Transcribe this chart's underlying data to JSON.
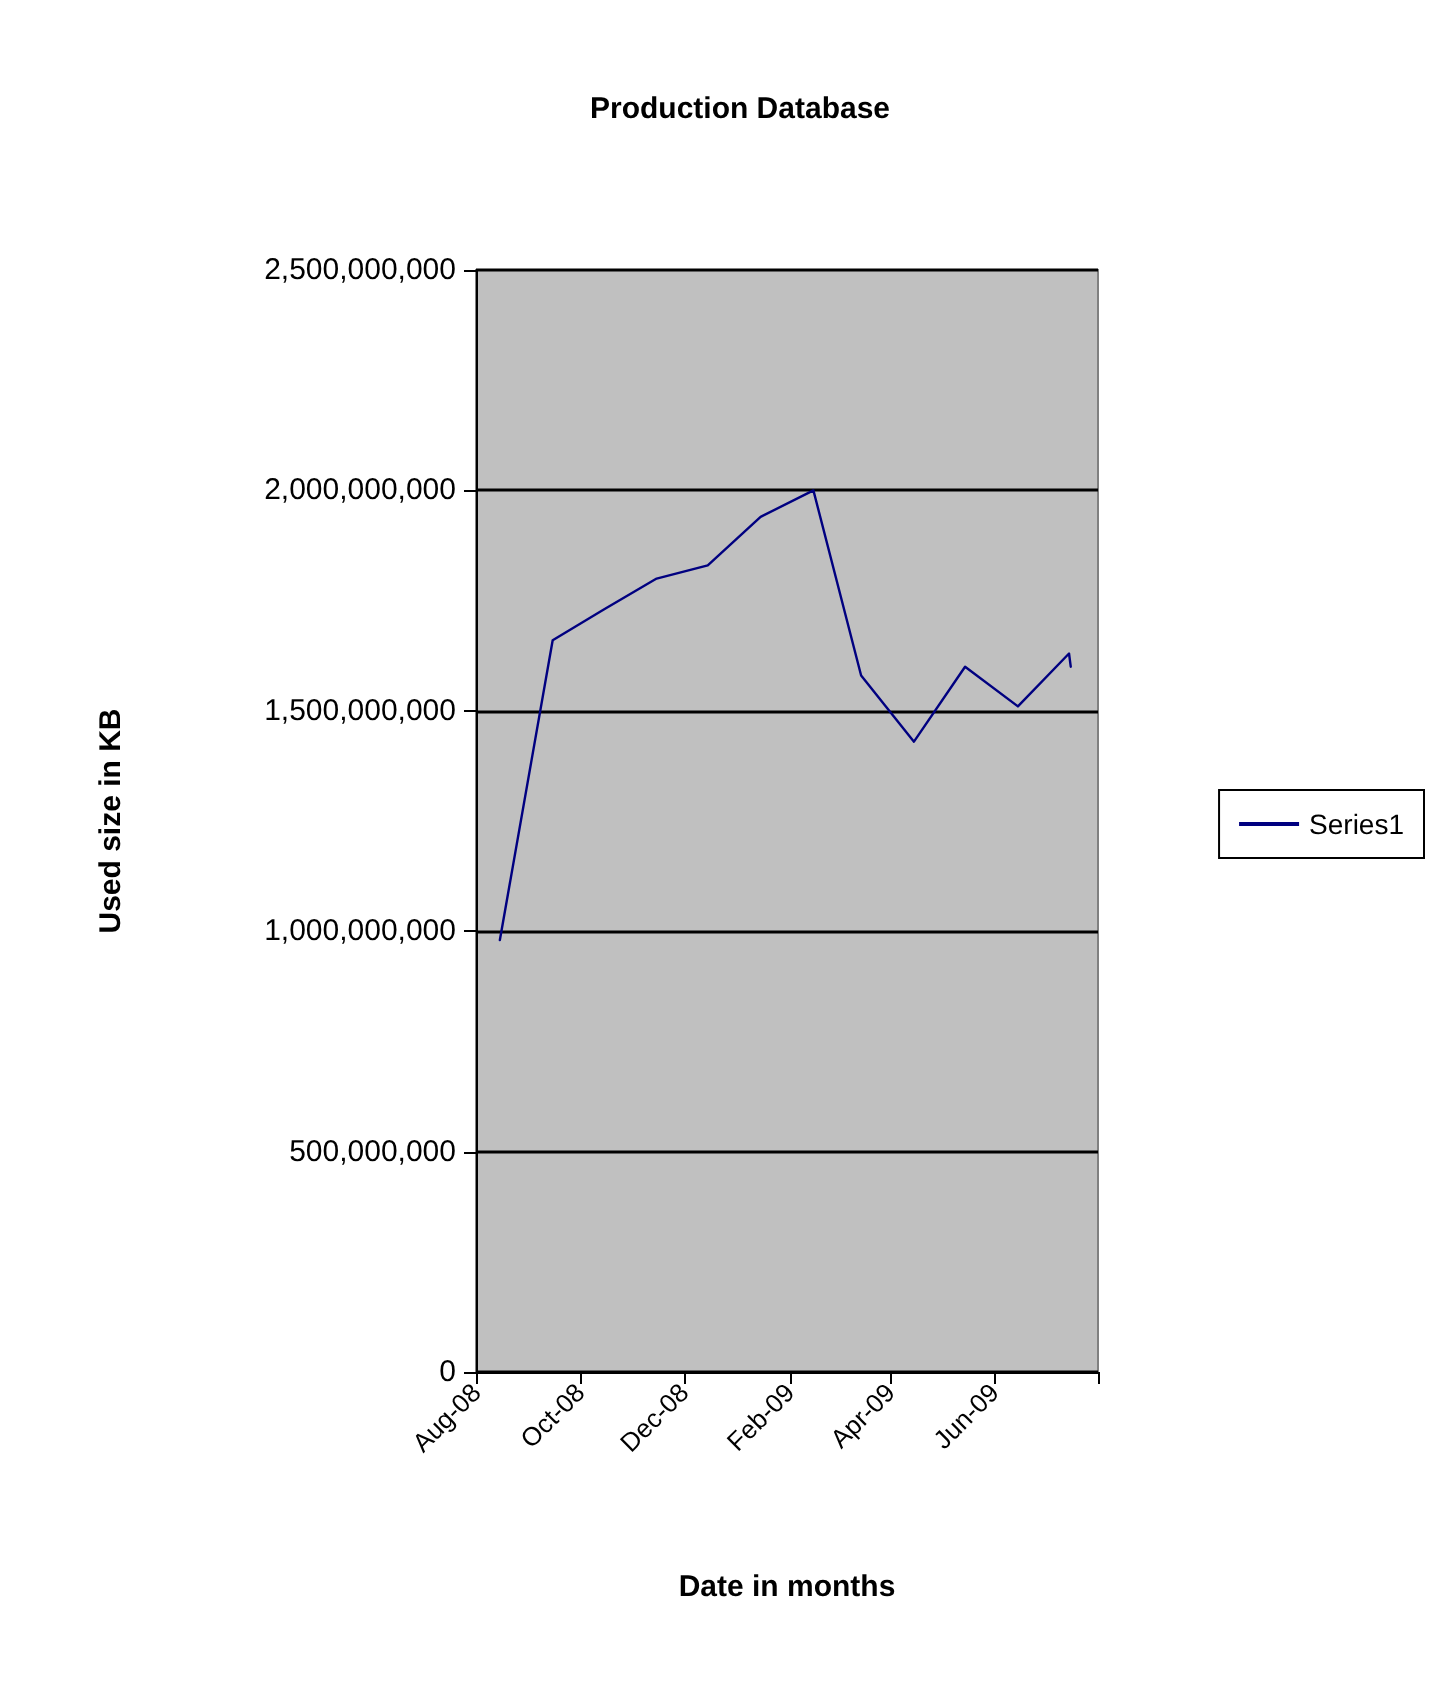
{
  "chart_data": {
    "type": "line",
    "title": "Production Database",
    "xlabel": "Date in months",
    "ylabel": "Used size in KB",
    "x": [
      "2008-08-15",
      "2008-09-15",
      "2008-10-15",
      "2008-11-15",
      "2008-12-15",
      "2009-01-15",
      "2009-02-15",
      "2009-03-15",
      "2009-04-15",
      "2009-05-15",
      "2009-06-15",
      "2009-07-15",
      "2009-07-16"
    ],
    "series": [
      {
        "name": "Series1",
        "color": "#000080",
        "values": [
          980000000,
          1660000000,
          1730000000,
          1800000000,
          1830000000,
          1940000000,
          2000000000,
          1580000000,
          1430000000,
          1600000000,
          1510000000,
          1630000000,
          1600000000
        ]
      }
    ],
    "xlim": [
      "2008-08-01",
      "2009-08-01"
    ],
    "xticks": [
      {
        "value": "2008-08-01",
        "label": "Aug-08"
      },
      {
        "value": "2008-10-01",
        "label": "Oct-08"
      },
      {
        "value": "2008-12-01",
        "label": "Dec-08"
      },
      {
        "value": "2009-02-01",
        "label": "Feb-09"
      },
      {
        "value": "2009-04-01",
        "label": "Apr-09"
      },
      {
        "value": "2009-06-01",
        "label": "Jun-09"
      },
      {
        "value": "2009-08-01",
        "label": null
      }
    ],
    "ylim": [
      0,
      2500000000
    ],
    "yticks": [
      0,
      {
        "value": 500000000,
        "label": "500,000,000"
      },
      {
        "value": 1000000000,
        "label": "1,000,000,000"
      },
      {
        "value": 1500000000,
        "label": "1,500,000,000"
      },
      {
        "value": 2000000000,
        "label": "2,000,000,000"
      },
      {
        "value": 2500000000,
        "label": "2,500,000,000"
      }
    ],
    "grid": "y",
    "legend": "right",
    "marker": "none",
    "line_style": "solid"
  }
}
